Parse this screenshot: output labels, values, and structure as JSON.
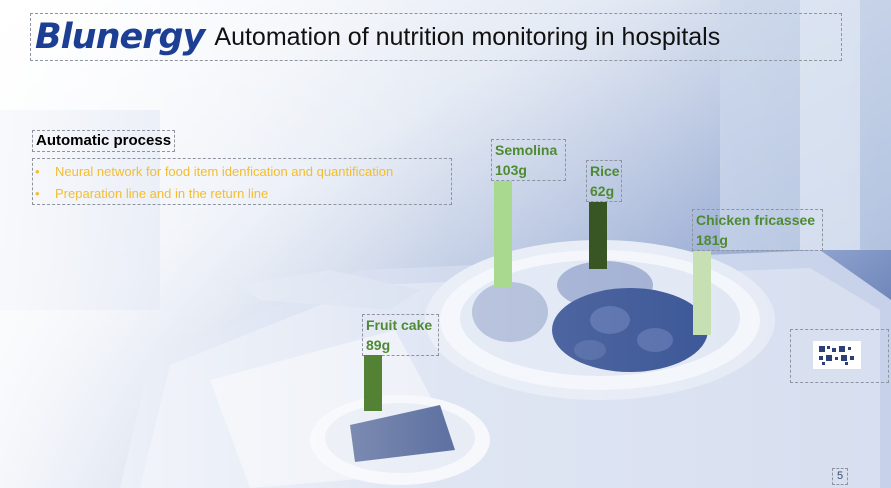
{
  "header": {
    "logo": "Blunergy",
    "title": "Automation of nutrition monitoring in hospitals"
  },
  "process": {
    "title": "Automatic process",
    "bullets": [
      "Neural network for food item idenfication and quantification",
      "Preparation line and in the return line"
    ]
  },
  "food_items": [
    {
      "name": "Semolina",
      "weight": "103g",
      "color": "#a9d88f"
    },
    {
      "name": "Rice",
      "weight": "62g",
      "color": "#375623"
    },
    {
      "name": "Chicken fricassee",
      "weight": "181g",
      "color": "#c6e0b4"
    },
    {
      "name": "Fruit cake",
      "weight": "89g",
      "color": "#548235"
    }
  ],
  "page_number": "5",
  "colors": {
    "brand": "#1c3f94",
    "bullet_text": "#f5bd2c",
    "label_text": "#4e8a32",
    "photo_tint": "#3b5da6"
  }
}
